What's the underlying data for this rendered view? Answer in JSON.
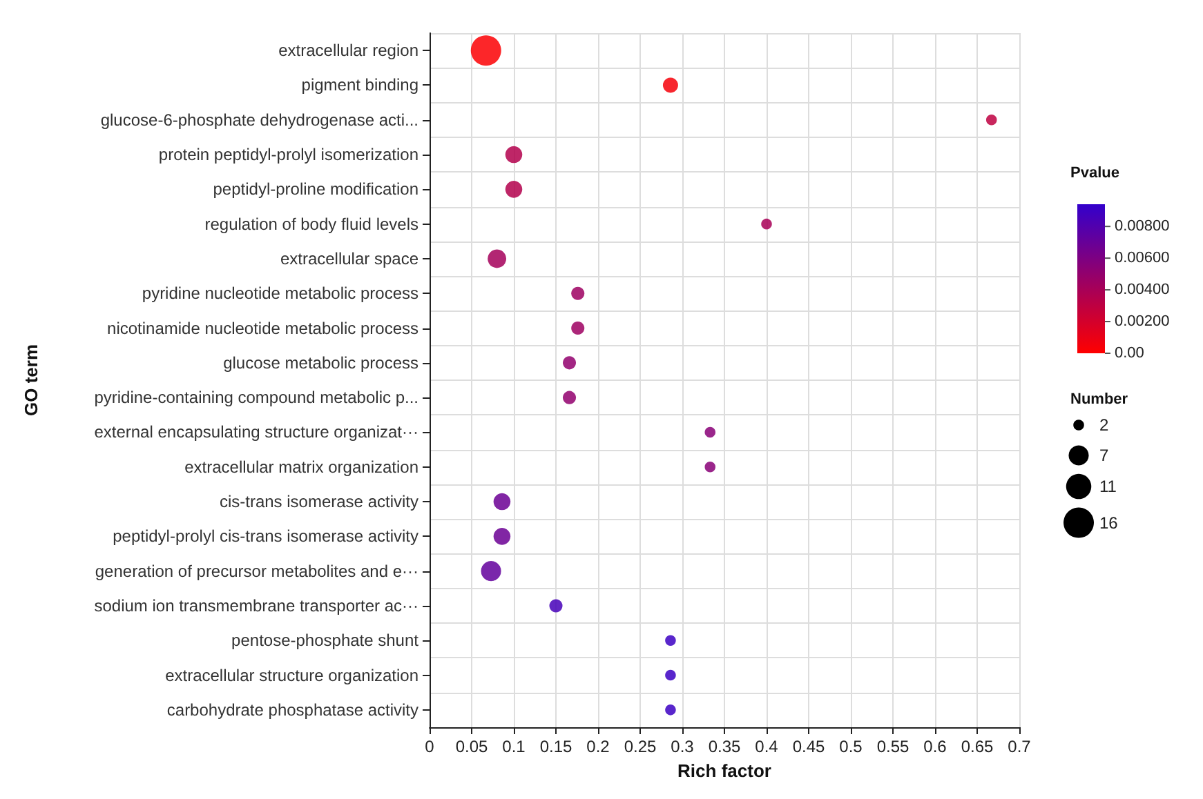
{
  "chart_data": {
    "type": "bubble",
    "orientation": "horizontal",
    "xlabel": "Rich factor",
    "ylabel": "GO term",
    "clabel": "Pvalue",
    "legend_title": "Number",
    "grid": true,
    "categories": [
      "extracellular region",
      "pigment binding",
      "glucose-6-phosphate dehydrogenase acti...",
      "protein peptidyl-prolyl isomerization",
      "peptidyl-proline modification",
      "regulation of body fluid levels",
      "extracellular space",
      "pyridine nucleotide metabolic process",
      "nicotinamide nucleotide metabolic process",
      "glucose metabolic process",
      "pyridine-containing compound metabolic p...",
      "external encapsulating structure organizat···",
      "extracellular matrix organization",
      "cis-trans isomerase activity",
      "peptidyl-prolyl cis-trans isomerase activity",
      "generation of precursor metabolites and e···",
      "sodium ion transmembrane transporter ac···",
      "pentose-phosphate shunt",
      "extracellular structure organization",
      "carbohydrate phosphatase activity"
    ],
    "values": [
      0.067,
      0.286,
      0.667,
      0.1,
      0.1,
      0.4,
      0.08,
      0.176,
      0.176,
      0.166,
      0.166,
      0.333,
      0.333,
      0.086,
      0.086,
      0.073,
      0.15,
      0.286,
      0.286,
      0.286
    ],
    "sizes": [
      16,
      4,
      2,
      5,
      5,
      2,
      6,
      3,
      3,
      3,
      3,
      2,
      2,
      5,
      5,
      7,
      3,
      2,
      2,
      2
    ],
    "cvalues": [
      0.0002,
      0.0004,
      0.003,
      0.0035,
      0.0035,
      0.004,
      0.0042,
      0.0045,
      0.0045,
      0.005,
      0.005,
      0.0055,
      0.0055,
      0.0068,
      0.0068,
      0.0072,
      0.0085,
      0.009,
      0.009,
      0.009
    ],
    "size_legend": [
      2,
      7,
      11,
      16
    ],
    "xlim": [
      0,
      0.7
    ],
    "xticks": [
      0,
      0.05,
      0.1,
      0.15,
      0.2,
      0.25,
      0.3,
      0.35,
      0.4,
      0.45,
      0.5,
      0.55,
      0.6,
      0.65,
      0.7
    ],
    "clim": [
      0,
      0.0094
    ],
    "cticks": [
      {
        "value": 0,
        "label": "0.00"
      },
      {
        "value": 0.002,
        "label": "0.00200"
      },
      {
        "value": 0.004,
        "label": "0.00400"
      },
      {
        "value": 0.006,
        "label": "0.00600"
      },
      {
        "value": 0.008,
        "label": "0.00800"
      }
    ]
  }
}
